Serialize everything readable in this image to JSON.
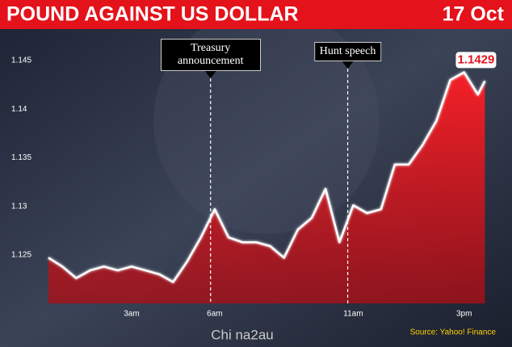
{
  "chart_data": {
    "type": "line",
    "title": "POUND AGAINST US DOLLAR",
    "subtitle": "17 Oct",
    "x": [
      0,
      0.5,
      1,
      1.5,
      2,
      2.5,
      3,
      3.5,
      4,
      4.5,
      5,
      5.5,
      6,
      6.5,
      7,
      7.5,
      8,
      8.5,
      9,
      9.5,
      10,
      10.5,
      11,
      11.5,
      12,
      12.5,
      13,
      13.5,
      14,
      14.5,
      15,
      15.5,
      15.75
    ],
    "series": [
      {
        "color": "#ffffff",
        "area_color": "#e3121b",
        "values": [
          1.1247,
          1.1238,
          1.1226,
          1.1234,
          1.1238,
          1.1234,
          1.1238,
          1.1234,
          1.123,
          1.1222,
          1.1243,
          1.1268,
          1.1297,
          1.1268,
          1.1263,
          1.1263,
          1.1259,
          1.1247,
          1.1276,
          1.1288,
          1.1318,
          1.1263,
          1.1301,
          1.1293,
          1.1297,
          1.1343,
          1.1343,
          1.1363,
          1.1388,
          1.143,
          1.1438,
          1.1415,
          1.1429
        ]
      }
    ],
    "xlim": [
      0,
      16
    ],
    "xticks": [
      {
        "value": 3,
        "label": "3am"
      },
      {
        "value": 6,
        "label": "6am"
      },
      {
        "value": 11,
        "label": "11am"
      },
      {
        "value": 15,
        "label": "3pm"
      }
    ],
    "ylim": [
      1.12,
      1.148
    ],
    "yticks": [
      1.125,
      1.13,
      1.135,
      1.14,
      1.145
    ],
    "annotations": [
      {
        "text": "Treasury announcement",
        "x": 5.85
      },
      {
        "text": "Hunt speech",
        "x": 10.8
      }
    ],
    "source": "Source: Yahoo! Finance",
    "watermark": "Chi na2au"
  }
}
